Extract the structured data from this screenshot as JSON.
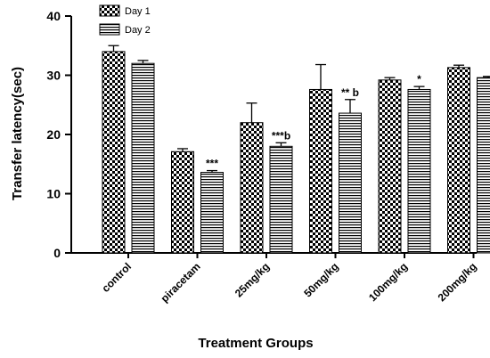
{
  "chart_data": {
    "type": "bar",
    "title": "",
    "xlabel": "Treatment Groups",
    "ylabel": "Transfer latency(sec)",
    "ylim": [
      0,
      40
    ],
    "yticks": [
      0,
      10,
      20,
      30,
      40
    ],
    "grid": false,
    "legend_position": "top-left",
    "categories": [
      "control",
      "piracetam",
      "25mg/kg",
      "50mg/kg",
      "100mg/kg",
      "200mg/kg"
    ],
    "series": [
      {
        "name": "Day 1",
        "pattern": "checkerboard",
        "values": [
          34.0,
          17.1,
          22.0,
          27.6,
          29.2,
          31.3
        ],
        "errors": [
          1.0,
          0.5,
          3.3,
          4.2,
          0.4,
          0.4
        ],
        "annotations": [
          "",
          "",
          "",
          "",
          "",
          ""
        ]
      },
      {
        "name": "Day 2",
        "pattern": "horizontal-stripes",
        "values": [
          32.0,
          13.6,
          18.0,
          23.6,
          27.6,
          29.6
        ],
        "errors": [
          0.5,
          0.3,
          0.6,
          2.3,
          0.5,
          0.2
        ],
        "annotations": [
          "",
          "***",
          "***b",
          "** b",
          "*",
          ""
        ]
      }
    ]
  }
}
